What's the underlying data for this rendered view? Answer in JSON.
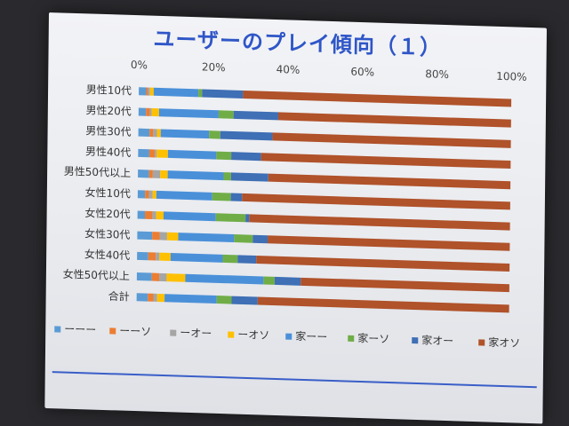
{
  "slide": {
    "title": "ユーザーのプレイ傾向（１）"
  },
  "colors": {
    "background": "#2a2a2e",
    "title": "#2f56c8",
    "series": [
      "#5b9bd5",
      "#ed7d31",
      "#a5a5a5",
      "#ffc000",
      "#4a90d9",
      "#70ad47",
      "#3f6fb5",
      "#b0522a"
    ]
  },
  "chart_data": {
    "type": "bar",
    "orientation": "horizontal",
    "stacked": "percent",
    "title": "",
    "xlabel": "",
    "ylabel": "",
    "xlim": [
      0,
      100
    ],
    "x_ticks": [
      "0%",
      "20%",
      "40%",
      "60%",
      "80%",
      "100%"
    ],
    "grid": false,
    "legend_position": "bottom",
    "categories": [
      "男性10代",
      "男性20代",
      "男性30代",
      "男性40代",
      "男性50代以上",
      "女性10代",
      "女性20代",
      "女性30代",
      "女性40代",
      "女性50代以上",
      "合計"
    ],
    "series": [
      {
        "name": "ーーー",
        "values": [
          2,
          2,
          3,
          3,
          3,
          2,
          2,
          4,
          3,
          4,
          3
        ]
      },
      {
        "name": "ーーソ",
        "values": [
          0.5,
          1,
          1,
          1.5,
          1,
          1,
          2,
          2,
          2,
          2,
          1.5
        ]
      },
      {
        "name": "ーオー",
        "values": [
          0.5,
          0.5,
          1,
          0.5,
          2,
          1,
          1,
          2,
          1,
          2,
          1
        ]
      },
      {
        "name": "ーオソ",
        "values": [
          1,
          2,
          1,
          3,
          2,
          1,
          2,
          3,
          3,
          5,
          2
        ]
      },
      {
        "name": "家ーー",
        "values": [
          12,
          16,
          13,
          13,
          15,
          15,
          14,
          15,
          14,
          21,
          14
        ]
      },
      {
        "name": "家ーソ",
        "values": [
          1,
          4,
          3,
          4,
          2,
          5,
          8,
          5,
          4,
          3,
          4
        ]
      },
      {
        "name": "家オー",
        "values": [
          11,
          12,
          14,
          8,
          10,
          3,
          1,
          4,
          5,
          7,
          7
        ]
      },
      {
        "name": "家オソ",
        "values": [
          72,
          62.5,
          64,
          67,
          65,
          72,
          70,
          65,
          68,
          56,
          67.5
        ]
      }
    ]
  }
}
